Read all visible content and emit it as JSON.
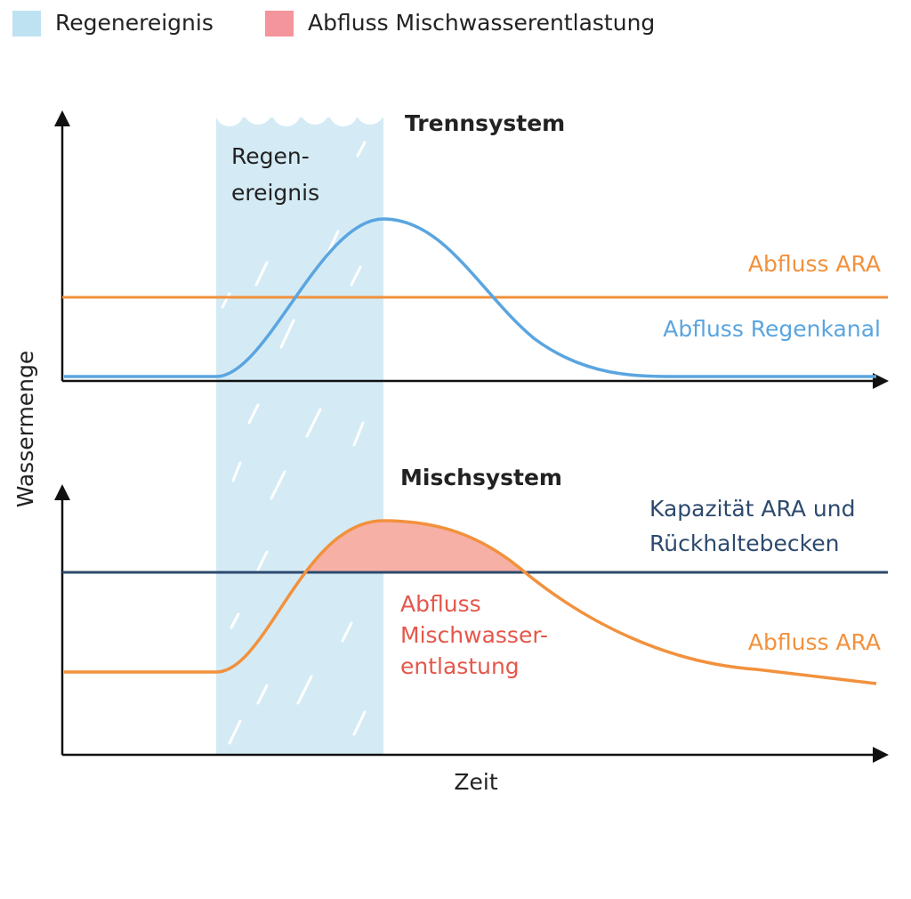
{
  "legend": [
    {
      "label": "Regenereignis"
    },
    {
      "label": "Abfluss Mischwasserentlastung"
    }
  ],
  "y_axis_label": "Wassermenge",
  "x_axis_label": "Zeit",
  "rain_label": [
    "Regen-",
    "ereignis"
  ],
  "top_panel": {
    "title": "Trennsystem",
    "labels": [
      "Abfluss ARA",
      "Abfluss Regenkanal"
    ]
  },
  "bottom_panel": {
    "title": "Mischsystem",
    "capacity_label": [
      "Kapazität ARA und",
      "Rückhaltebecken"
    ],
    "overflow_label": [
      "Abfluss",
      "Mischwasser-",
      "entlastung"
    ],
    "flow_label": "Abfluss ARA"
  }
}
